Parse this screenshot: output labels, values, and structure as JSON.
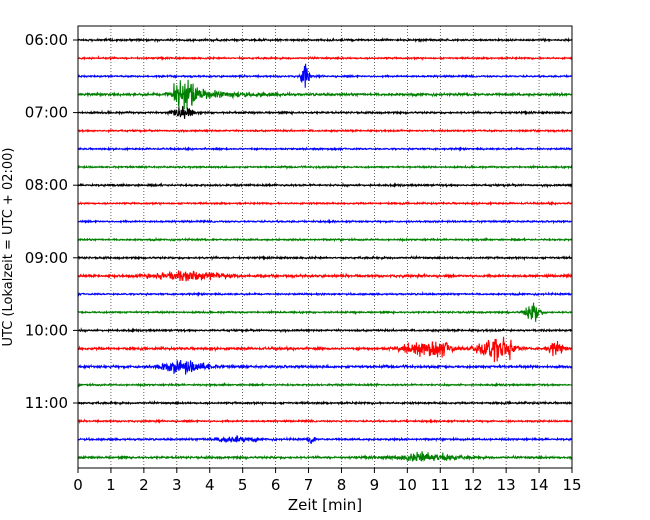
{
  "chart_data": {
    "type": "line",
    "title": "",
    "xlabel": "Zeit  [min]",
    "ylabel": "UTC (Lokalzeit = UTC + 02:00)",
    "xlim": [
      0,
      15
    ],
    "x_ticks": [
      0,
      1,
      2,
      3,
      4,
      5,
      6,
      7,
      8,
      9,
      10,
      11,
      12,
      13,
      14,
      15
    ],
    "x_tick_labels": [
      "0",
      "1",
      "2",
      "3",
      "4",
      "5",
      "6",
      "7",
      "8",
      "9",
      "10",
      "11",
      "12",
      "13",
      "14",
      "15"
    ],
    "y_tick_labels": [
      "06:00",
      "07:00",
      "08:00",
      "09:00",
      "10:00",
      "11:00"
    ],
    "y_tick_rows": [
      0,
      4,
      8,
      12,
      16,
      20
    ],
    "trace_colors": [
      "#000000",
      "#ff0000",
      "#0000ff",
      "#008000"
    ],
    "grid": "vertical dotted",
    "legend": "none",
    "traces": [
      {
        "row": 0,
        "color": "#000000",
        "noise": 0.8,
        "events": []
      },
      {
        "row": 1,
        "color": "#ff0000",
        "noise": 0.7,
        "events": []
      },
      {
        "row": 2,
        "color": "#0000ff",
        "noise": 0.7,
        "events": [
          {
            "t": 6.9,
            "amp": 12,
            "width": 0.08
          }
        ]
      },
      {
        "row": 3,
        "color": "#008000",
        "noise": 1.0,
        "events": [
          {
            "t": 3.25,
            "amp": 17,
            "width": 0.25,
            "coda": 3.2
          }
        ]
      },
      {
        "row": 4,
        "color": "#000000",
        "noise": 0.8,
        "events": [
          {
            "t": 3.2,
            "amp": 6,
            "width": 0.2
          }
        ]
      },
      {
        "row": 5,
        "color": "#ff0000",
        "noise": 0.7,
        "events": []
      },
      {
        "row": 6,
        "color": "#0000ff",
        "noise": 0.7,
        "events": []
      },
      {
        "row": 7,
        "color": "#008000",
        "noise": 0.7,
        "events": []
      },
      {
        "row": 8,
        "color": "#000000",
        "noise": 0.8,
        "events": []
      },
      {
        "row": 9,
        "color": "#ff0000",
        "noise": 0.7,
        "events": []
      },
      {
        "row": 10,
        "color": "#0000ff",
        "noise": 0.7,
        "events": []
      },
      {
        "row": 11,
        "color": "#008000",
        "noise": 0.7,
        "events": []
      },
      {
        "row": 12,
        "color": "#000000",
        "noise": 0.8,
        "events": []
      },
      {
        "row": 13,
        "color": "#ff0000",
        "noise": 1.0,
        "events": [
          {
            "t": 3.3,
            "amp": 4,
            "width": 0.8
          }
        ]
      },
      {
        "row": 14,
        "color": "#0000ff",
        "noise": 0.7,
        "events": []
      },
      {
        "row": 15,
        "color": "#008000",
        "noise": 0.7,
        "events": [
          {
            "t": 13.8,
            "amp": 10,
            "width": 0.15
          }
        ]
      },
      {
        "row": 16,
        "color": "#000000",
        "noise": 0.8,
        "events": []
      },
      {
        "row": 17,
        "color": "#ff0000",
        "noise": 1.0,
        "events": [
          {
            "t": 10.3,
            "amp": 5,
            "width": 0.4
          },
          {
            "t": 11.0,
            "amp": 5,
            "width": 0.3
          },
          {
            "t": 12.4,
            "amp": 8,
            "width": 0.25
          },
          {
            "t": 12.9,
            "amp": 10,
            "width": 0.25
          },
          {
            "t": 14.5,
            "amp": 6,
            "width": 0.15
          }
        ]
      },
      {
        "row": 18,
        "color": "#0000ff",
        "noise": 1.0,
        "events": [
          {
            "t": 3.2,
            "amp": 5,
            "width": 0.5
          }
        ]
      },
      {
        "row": 19,
        "color": "#008000",
        "noise": 0.7,
        "events": []
      },
      {
        "row": 20,
        "color": "#000000",
        "noise": 0.8,
        "events": []
      },
      {
        "row": 21,
        "color": "#ff0000",
        "noise": 0.7,
        "events": []
      },
      {
        "row": 22,
        "color": "#0000ff",
        "noise": 0.8,
        "events": [
          {
            "t": 7.1,
            "amp": 5,
            "width": 0.06
          },
          {
            "t": 4.7,
            "amp": 3,
            "width": 0.4
          }
        ]
      },
      {
        "row": 23,
        "color": "#008000",
        "noise": 0.9,
        "events": [
          {
            "t": 10.6,
            "amp": 4,
            "width": 0.6
          }
        ]
      }
    ]
  }
}
